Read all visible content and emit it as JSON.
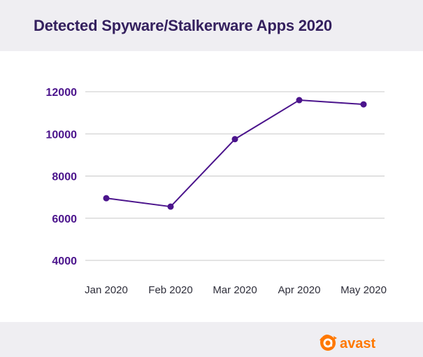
{
  "title": "Detected Spyware/Stalkerware Apps 2020",
  "brand": {
    "name": "avast",
    "color": "#ff7800",
    "icon": "avast-logo-icon"
  },
  "colors": {
    "title": "#34205e",
    "line": "#4b148c",
    "axis_text": "#4b148c",
    "category_text": "#2e2e3a",
    "grid": "#c8c8c8"
  },
  "chart_data": {
    "type": "line",
    "title": "Detected Spyware/Stalkerware Apps 2020",
    "categories": [
      "Jan 2020",
      "Feb 2020",
      "Mar 2020",
      "Apr 2020",
      "May 2020"
    ],
    "series": [
      {
        "values": [
          6950,
          6550,
          9750,
          11600,
          11400
        ]
      }
    ],
    "yticks": [
      "12000",
      "10000",
      "8000",
      "6000",
      "4000"
    ],
    "ylim": [
      4000,
      12000
    ],
    "grid": true,
    "legend": "none"
  }
}
